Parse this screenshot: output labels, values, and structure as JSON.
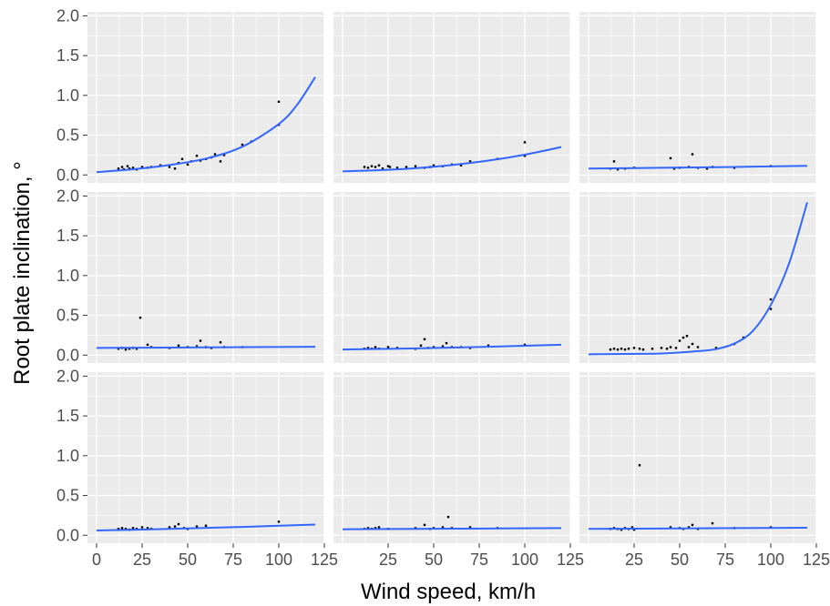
{
  "chart_data": {
    "type": "scatter",
    "layout": {
      "rows": 3,
      "cols": 3
    },
    "xlabel": "Wind speed, km/h",
    "ylabel": "Root plate inclination, °",
    "xlim": [
      -5,
      125
    ],
    "ylim": [
      -0.1,
      2.05
    ],
    "x_ticks": [
      0,
      25,
      50,
      75,
      100,
      125
    ],
    "x_tick_labels_bottom_row": [
      [
        "0",
        "25",
        "50",
        "75",
        "100",
        "125"
      ],
      [
        "25",
        "50",
        "75",
        "100",
        "125"
      ],
      [
        "25",
        "50",
        "75",
        "100",
        "125"
      ]
    ],
    "y_ticks": [
      0.0,
      0.5,
      1.0,
      1.5,
      2.0
    ],
    "y_tick_labels": [
      "0.0",
      "0.5",
      "1.0",
      "1.5",
      "2.0"
    ],
    "grid": true,
    "colors": {
      "panel_bg": "#ebebeb",
      "grid": "#ffffff",
      "points": "#000000",
      "fit_line": "#3366ff"
    },
    "panels": [
      {
        "points": [
          [
            12,
            0.08
          ],
          [
            14,
            0.1
          ],
          [
            15,
            0.07
          ],
          [
            17,
            0.11
          ],
          [
            18,
            0.08
          ],
          [
            20,
            0.09
          ],
          [
            22,
            0.07
          ],
          [
            25,
            0.1
          ],
          [
            28,
            0.09
          ],
          [
            30,
            0.1
          ],
          [
            35,
            0.12
          ],
          [
            40,
            0.1
          ],
          [
            43,
            0.08
          ],
          [
            45,
            0.15
          ],
          [
            47,
            0.2
          ],
          [
            50,
            0.13
          ],
          [
            52,
            0.17
          ],
          [
            55,
            0.24
          ],
          [
            57,
            0.18
          ],
          [
            60,
            0.2
          ],
          [
            63,
            0.22
          ],
          [
            65,
            0.26
          ],
          [
            68,
            0.17
          ],
          [
            70,
            0.25
          ],
          [
            80,
            0.38
          ],
          [
            85,
            0.42
          ],
          [
            100,
            0.92
          ],
          [
            100,
            0.63
          ]
        ],
        "fit": [
          [
            0,
            0.035
          ],
          [
            20,
            0.072
          ],
          [
            40,
            0.125
          ],
          [
            60,
            0.205
          ],
          [
            80,
            0.355
          ],
          [
            100,
            0.64
          ],
          [
            110,
            0.88
          ],
          [
            120,
            1.23
          ]
        ]
      },
      {
        "points": [
          [
            12,
            0.1
          ],
          [
            14,
            0.09
          ],
          [
            16,
            0.11
          ],
          [
            18,
            0.1
          ],
          [
            20,
            0.12
          ],
          [
            22,
            0.08
          ],
          [
            25,
            0.11
          ],
          [
            26,
            0.1
          ],
          [
            30,
            0.09
          ],
          [
            35,
            0.1
          ],
          [
            40,
            0.11
          ],
          [
            45,
            0.09
          ],
          [
            48,
            0.1
          ],
          [
            50,
            0.12
          ],
          [
            55,
            0.11
          ],
          [
            60,
            0.13
          ],
          [
            65,
            0.12
          ],
          [
            70,
            0.17
          ],
          [
            85,
            0.2
          ],
          [
            100,
            0.41
          ],
          [
            100,
            0.24
          ]
        ],
        "fit": [
          [
            0,
            0.045
          ],
          [
            20,
            0.06
          ],
          [
            40,
            0.085
          ],
          [
            60,
            0.125
          ],
          [
            80,
            0.18
          ],
          [
            100,
            0.255
          ],
          [
            120,
            0.35
          ]
        ]
      },
      {
        "points": [
          [
            12,
            0.08
          ],
          [
            14,
            0.17
          ],
          [
            16,
            0.07
          ],
          [
            20,
            0.08
          ],
          [
            25,
            0.09
          ],
          [
            45,
            0.21
          ],
          [
            47,
            0.08
          ],
          [
            50,
            0.09
          ],
          [
            55,
            0.1
          ],
          [
            57,
            0.26
          ],
          [
            60,
            0.09
          ],
          [
            65,
            0.08
          ],
          [
            68,
            0.1
          ],
          [
            80,
            0.09
          ],
          [
            100,
            0.11
          ]
        ],
        "fit": [
          [
            0,
            0.08
          ],
          [
            40,
            0.09
          ],
          [
            80,
            0.1
          ],
          [
            120,
            0.115
          ]
        ]
      },
      {
        "points": [
          [
            12,
            0.08
          ],
          [
            14,
            0.09
          ],
          [
            16,
            0.07
          ],
          [
            18,
            0.08
          ],
          [
            20,
            0.09
          ],
          [
            22,
            0.08
          ],
          [
            24,
            0.47
          ],
          [
            28,
            0.13
          ],
          [
            30,
            0.1
          ],
          [
            40,
            0.09
          ],
          [
            45,
            0.12
          ],
          [
            50,
            0.1
          ],
          [
            55,
            0.11
          ],
          [
            57,
            0.18
          ],
          [
            60,
            0.1
          ],
          [
            63,
            0.09
          ],
          [
            68,
            0.16
          ],
          [
            70,
            0.1
          ],
          [
            80,
            0.1
          ]
        ],
        "fit": [
          [
            0,
            0.09
          ],
          [
            40,
            0.095
          ],
          [
            80,
            0.1
          ],
          [
            120,
            0.105
          ]
        ]
      },
      {
        "points": [
          [
            12,
            0.08
          ],
          [
            14,
            0.09
          ],
          [
            16,
            0.08
          ],
          [
            18,
            0.1
          ],
          [
            20,
            0.08
          ],
          [
            25,
            0.1
          ],
          [
            30,
            0.09
          ],
          [
            40,
            0.08
          ],
          [
            43,
            0.12
          ],
          [
            45,
            0.2
          ],
          [
            47,
            0.09
          ],
          [
            50,
            0.1
          ],
          [
            55,
            0.11
          ],
          [
            57,
            0.15
          ],
          [
            60,
            0.1
          ],
          [
            65,
            0.1
          ],
          [
            70,
            0.09
          ],
          [
            80,
            0.12
          ],
          [
            100,
            0.13
          ]
        ],
        "fit": [
          [
            0,
            0.07
          ],
          [
            40,
            0.085
          ],
          [
            80,
            0.105
          ],
          [
            120,
            0.13
          ]
        ]
      },
      {
        "points": [
          [
            12,
            0.07
          ],
          [
            14,
            0.08
          ],
          [
            16,
            0.07
          ],
          [
            18,
            0.08
          ],
          [
            20,
            0.07
          ],
          [
            22,
            0.08
          ],
          [
            25,
            0.09
          ],
          [
            28,
            0.08
          ],
          [
            30,
            0.07
          ],
          [
            35,
            0.08
          ],
          [
            40,
            0.09
          ],
          [
            43,
            0.08
          ],
          [
            45,
            0.1
          ],
          [
            48,
            0.09
          ],
          [
            50,
            0.18
          ],
          [
            52,
            0.22
          ],
          [
            54,
            0.24
          ],
          [
            55,
            0.1
          ],
          [
            57,
            0.14
          ],
          [
            60,
            0.1
          ],
          [
            70,
            0.09
          ],
          [
            80,
            0.14
          ],
          [
            85,
            0.22
          ],
          [
            100,
            0.7
          ],
          [
            100,
            0.58
          ]
        ],
        "fit": [
          [
            0,
            0.01
          ],
          [
            20,
            0.015
          ],
          [
            40,
            0.02
          ],
          [
            60,
            0.05
          ],
          [
            70,
            0.075
          ],
          [
            80,
            0.145
          ],
          [
            90,
            0.3
          ],
          [
            100,
            0.63
          ],
          [
            110,
            1.15
          ],
          [
            120,
            1.92
          ]
        ]
      },
      {
        "points": [
          [
            12,
            0.08
          ],
          [
            14,
            0.09
          ],
          [
            16,
            0.08
          ],
          [
            18,
            0.07
          ],
          [
            20,
            0.09
          ],
          [
            22,
            0.08
          ],
          [
            25,
            0.1
          ],
          [
            28,
            0.09
          ],
          [
            30,
            0.08
          ],
          [
            40,
            0.1
          ],
          [
            43,
            0.11
          ],
          [
            45,
            0.14
          ],
          [
            48,
            0.09
          ],
          [
            50,
            0.08
          ],
          [
            55,
            0.11
          ],
          [
            60,
            0.12
          ],
          [
            100,
            0.17
          ]
        ],
        "fit": [
          [
            0,
            0.06
          ],
          [
            40,
            0.08
          ],
          [
            80,
            0.105
          ],
          [
            120,
            0.135
          ]
        ]
      },
      {
        "points": [
          [
            12,
            0.08
          ],
          [
            14,
            0.09
          ],
          [
            16,
            0.08
          ],
          [
            18,
            0.09
          ],
          [
            20,
            0.1
          ],
          [
            25,
            0.08
          ],
          [
            40,
            0.09
          ],
          [
            45,
            0.13
          ],
          [
            48,
            0.08
          ],
          [
            50,
            0.09
          ],
          [
            55,
            0.1
          ],
          [
            58,
            0.23
          ],
          [
            60,
            0.09
          ],
          [
            70,
            0.1
          ],
          [
            85,
            0.09
          ]
        ],
        "fit": [
          [
            0,
            0.075
          ],
          [
            40,
            0.08
          ],
          [
            80,
            0.085
          ],
          [
            120,
            0.09
          ]
        ]
      },
      {
        "points": [
          [
            12,
            0.08
          ],
          [
            14,
            0.09
          ],
          [
            16,
            0.08
          ],
          [
            18,
            0.07
          ],
          [
            20,
            0.09
          ],
          [
            22,
            0.08
          ],
          [
            24,
            0.1
          ],
          [
            25,
            0.07
          ],
          [
            28,
            0.88
          ],
          [
            45,
            0.1
          ],
          [
            50,
            0.09
          ],
          [
            52,
            0.08
          ],
          [
            55,
            0.1
          ],
          [
            57,
            0.13
          ],
          [
            60,
            0.08
          ],
          [
            68,
            0.15
          ],
          [
            80,
            0.09
          ],
          [
            100,
            0.1
          ]
        ],
        "fit": [
          [
            0,
            0.08
          ],
          [
            40,
            0.085
          ],
          [
            80,
            0.09
          ],
          [
            120,
            0.095
          ]
        ]
      }
    ]
  }
}
